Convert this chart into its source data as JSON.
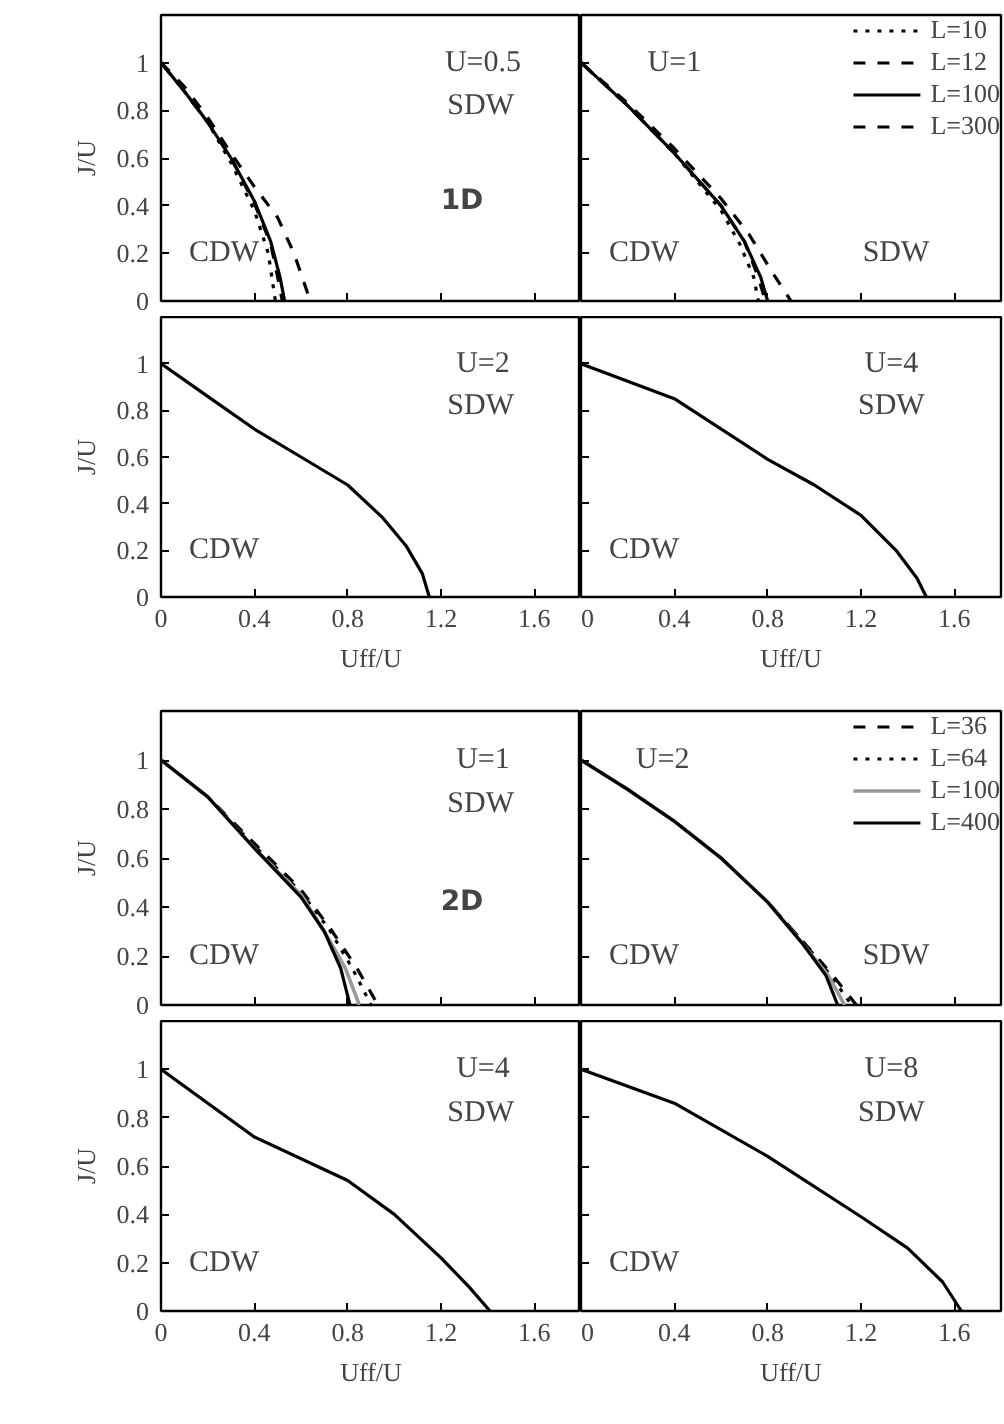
{
  "chart_data": [
    {
      "type": "line",
      "xlim": [
        0,
        1.8
      ],
      "ylim": [
        0,
        1.2
      ],
      "xticks": [
        0,
        0.4,
        0.8,
        1.2,
        1.6
      ],
      "yticks": [
        0,
        0.2,
        0.4,
        0.6,
        0.8,
        1
      ],
      "tick_labels": "y",
      "ylabel": "J/U",
      "annotations": [
        "U=0.5",
        "SDW",
        "1D",
        "CDW"
      ],
      "series": [
        {
          "color": "#000000",
          "line_style": "dotted",
          "x": [
            0,
            0.1,
            0.2,
            0.3,
            0.4,
            0.46,
            0.49
          ],
          "values": [
            1,
            0.88,
            0.75,
            0.58,
            0.38,
            0.2,
            0
          ]
        },
        {
          "color": "#000000",
          "line_style": "dashed",
          "x": [
            0,
            0.1,
            0.2,
            0.3,
            0.4,
            0.5,
            0.57,
            0.64
          ],
          "values": [
            1,
            0.9,
            0.77,
            0.62,
            0.48,
            0.35,
            0.2,
            0
          ]
        },
        {
          "color": "#000000",
          "line_style": "solid",
          "x": [
            0,
            0.1,
            0.2,
            0.3,
            0.4,
            0.47,
            0.51,
            0.53
          ],
          "values": [
            1,
            0.88,
            0.75,
            0.6,
            0.42,
            0.25,
            0.1,
            0
          ]
        },
        {
          "color": "#000000",
          "line_style": "dashed",
          "x": [
            0,
            0.1,
            0.2,
            0.3,
            0.4,
            0.47,
            0.5,
            0.52
          ],
          "values": [
            1,
            0.88,
            0.75,
            0.6,
            0.41,
            0.24,
            0.1,
            0
          ]
        }
      ]
    },
    {
      "type": "line",
      "xlim": [
        0,
        1.8
      ],
      "ylim": [
        0,
        1.2
      ],
      "xticks": [
        0,
        0.4,
        0.8,
        1.2,
        1.6
      ],
      "yticks": [
        0,
        0.2,
        0.4,
        0.6,
        0.8,
        1
      ],
      "tick_labels": false,
      "legend": "top right",
      "annotations": [
        "U=1",
        "CDW",
        "SDW"
      ],
      "series": [
        {
          "name": "L=10",
          "color": "#000000",
          "line_style": "dotted",
          "x": [
            0,
            0.2,
            0.4,
            0.6,
            0.68,
            0.74,
            0.76
          ],
          "values": [
            1,
            0.82,
            0.62,
            0.38,
            0.24,
            0.1,
            0
          ]
        },
        {
          "name": "L=12",
          "color": "#000000",
          "line_style": "dashed",
          "x": [
            0,
            0.2,
            0.4,
            0.6,
            0.72,
            0.82,
            0.9
          ],
          "values": [
            1,
            0.83,
            0.64,
            0.43,
            0.28,
            0.12,
            0
          ]
        },
        {
          "name": "L=100",
          "color": "#000000",
          "line_style": "solid",
          "x": [
            0,
            0.2,
            0.4,
            0.6,
            0.7,
            0.77,
            0.8
          ],
          "values": [
            1,
            0.82,
            0.62,
            0.4,
            0.25,
            0.1,
            0
          ]
        },
        {
          "name": "L=300",
          "color": "#000000",
          "line_style": "dashed",
          "x": [
            0,
            0.2,
            0.4,
            0.6,
            0.7,
            0.76,
            0.79
          ],
          "values": [
            1,
            0.82,
            0.62,
            0.4,
            0.25,
            0.1,
            0
          ]
        }
      ]
    },
    {
      "type": "line",
      "xlim": [
        0,
        1.8
      ],
      "ylim": [
        0,
        1.2
      ],
      "xticks": [
        0,
        0.4,
        0.8,
        1.2,
        1.6
      ],
      "yticks": [
        0,
        0.2,
        0.4,
        0.6,
        0.8,
        1
      ],
      "xlabel": "Uff/U",
      "ylabel": "J/U",
      "annotations": [
        "U=2",
        "SDW",
        "CDW"
      ],
      "series": [
        {
          "color": "#000000",
          "line_style": "solid",
          "x": [
            0,
            0.2,
            0.4,
            0.6,
            0.8,
            0.95,
            1.05,
            1.12,
            1.15
          ],
          "values": [
            1,
            0.86,
            0.72,
            0.6,
            0.48,
            0.34,
            0.22,
            0.1,
            0
          ]
        }
      ]
    },
    {
      "type": "line",
      "xlim": [
        0,
        1.8
      ],
      "ylim": [
        0,
        1.2
      ],
      "xticks": [
        0,
        0.4,
        0.8,
        1.2,
        1.6
      ],
      "yticks": [
        0,
        0.2,
        0.4,
        0.6,
        0.8,
        1
      ],
      "tick_labels": "x",
      "xlabel": "Uff/U",
      "annotations": [
        "U=4",
        "SDW",
        "CDW"
      ],
      "series": [
        {
          "color": "#000000",
          "line_style": "solid",
          "x": [
            0,
            0.4,
            0.8,
            1.0,
            1.2,
            1.35,
            1.44,
            1.48
          ],
          "values": [
            1,
            0.85,
            0.59,
            0.48,
            0.35,
            0.2,
            0.08,
            0
          ]
        }
      ]
    },
    {
      "type": "line",
      "xlim": [
        0,
        1.8
      ],
      "ylim": [
        0,
        1.2
      ],
      "xticks": [
        0,
        0.4,
        0.8,
        1.2,
        1.6
      ],
      "yticks": [
        0,
        0.2,
        0.4,
        0.6,
        0.8,
        1
      ],
      "tick_labels": "y",
      "ylabel": "J/U",
      "annotations": [
        "U=1",
        "SDW",
        "2D",
        "CDW"
      ],
      "series": [
        {
          "color": "#000000",
          "line_style": "dashed",
          "x": [
            0,
            0.2,
            0.4,
            0.6,
            0.72,
            0.84,
            0.93
          ],
          "values": [
            1,
            0.85,
            0.66,
            0.47,
            0.32,
            0.15,
            0
          ]
        },
        {
          "color": "#000000",
          "line_style": "dotted",
          "x": [
            0,
            0.2,
            0.4,
            0.6,
            0.72,
            0.82,
            0.9
          ],
          "values": [
            1,
            0.85,
            0.65,
            0.46,
            0.31,
            0.15,
            0
          ]
        },
        {
          "color": "#999999",
          "line_style": "solid",
          "x": [
            0,
            0.2,
            0.4,
            0.6,
            0.7,
            0.79,
            0.85
          ],
          "values": [
            1,
            0.85,
            0.64,
            0.45,
            0.3,
            0.15,
            0
          ]
        },
        {
          "color": "#000000",
          "line_style": "solid",
          "x": [
            0,
            0.2,
            0.4,
            0.6,
            0.7,
            0.77,
            0.81
          ],
          "values": [
            1,
            0.85,
            0.64,
            0.44,
            0.3,
            0.15,
            0
          ]
        }
      ]
    },
    {
      "type": "line",
      "xlim": [
        0,
        1.8
      ],
      "ylim": [
        0,
        1.2
      ],
      "xticks": [
        0,
        0.4,
        0.8,
        1.2,
        1.6
      ],
      "yticks": [
        0,
        0.2,
        0.4,
        0.6,
        0.8,
        1
      ],
      "tick_labels": false,
      "legend": "top right",
      "annotations": [
        "U=2",
        "CDW",
        "SDW"
      ],
      "series": [
        {
          "name": "L=36",
          "color": "#000000",
          "line_style": "dashed",
          "x": [
            0,
            0.2,
            0.4,
            0.6,
            0.8,
            0.95,
            1.08,
            1.18
          ],
          "values": [
            1,
            0.88,
            0.75,
            0.6,
            0.42,
            0.26,
            0.12,
            0
          ]
        },
        {
          "name": "L=64",
          "color": "#000000",
          "line_style": "dotted",
          "x": [
            0,
            0.2,
            0.4,
            0.6,
            0.8,
            0.95,
            1.07,
            1.16
          ],
          "values": [
            1,
            0.88,
            0.75,
            0.6,
            0.42,
            0.26,
            0.12,
            0
          ]
        },
        {
          "name": "L=100",
          "color": "#999999",
          "line_style": "solid",
          "x": [
            0,
            0.2,
            0.4,
            0.6,
            0.8,
            0.95,
            1.06,
            1.13
          ],
          "values": [
            1,
            0.88,
            0.75,
            0.6,
            0.42,
            0.25,
            0.12,
            0
          ]
        },
        {
          "name": "L=400",
          "color": "#000000",
          "line_style": "solid",
          "x": [
            0,
            0.2,
            0.4,
            0.6,
            0.8,
            0.95,
            1.05,
            1.1
          ],
          "values": [
            1,
            0.88,
            0.75,
            0.6,
            0.42,
            0.25,
            0.12,
            0
          ]
        }
      ]
    },
    {
      "type": "line",
      "xlim": [
        0,
        1.8
      ],
      "ylim": [
        0,
        1.2
      ],
      "xticks": [
        0,
        0.4,
        0.8,
        1.2,
        1.6
      ],
      "yticks": [
        0,
        0.2,
        0.4,
        0.6,
        0.8,
        1
      ],
      "xlabel": "Uff/U",
      "ylabel": "J/U",
      "annotations": [
        "U=4",
        "SDW",
        "CDW"
      ],
      "series": [
        {
          "color": "#000000",
          "line_style": "solid",
          "x": [
            0,
            0.4,
            0.8,
            1.0,
            1.2,
            1.32,
            1.41
          ],
          "values": [
            1,
            0.72,
            0.54,
            0.4,
            0.22,
            0.1,
            0
          ]
        }
      ]
    },
    {
      "type": "line",
      "xlim": [
        0,
        1.8
      ],
      "ylim": [
        0,
        1.2
      ],
      "xticks": [
        0,
        0.4,
        0.8,
        1.2,
        1.6
      ],
      "yticks": [
        0,
        0.2,
        0.4,
        0.6,
        0.8,
        1
      ],
      "tick_labels": "x",
      "xlabel": "Uff/U",
      "annotations": [
        "U=8",
        "SDW",
        "CDW"
      ],
      "series": [
        {
          "color": "#000000",
          "x": [
            0,
            0.4,
            0.8,
            1.2,
            1.4,
            1.55,
            1.63
          ],
          "values": [
            1,
            0.86,
            0.64,
            0.39,
            0.26,
            0.12,
            0
          ]
        }
      ]
    }
  ]
}
